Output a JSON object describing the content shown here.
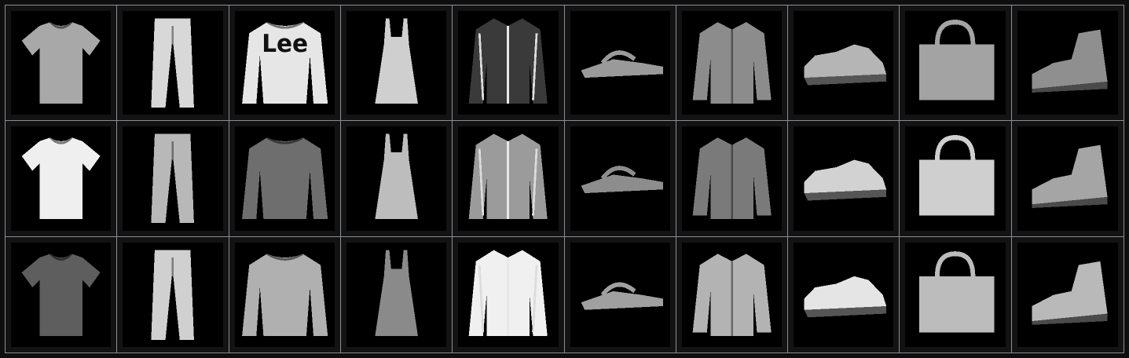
{
  "grid": {
    "rows": 3,
    "cols": 10,
    "items": [
      {
        "icon": "tshirt-icon",
        "shade": "#a8a8a8",
        "logo": ""
      },
      {
        "icon": "trouser-icon",
        "shade": "#d8d8d8",
        "logo": ""
      },
      {
        "icon": "pullover-icon",
        "shade": "#e6e6e6",
        "logo": "Lee"
      },
      {
        "icon": "dress-icon",
        "shade": "#cfcfcf",
        "logo": ""
      },
      {
        "icon": "coat-icon",
        "shade": "#3a3a3a",
        "logo": ""
      },
      {
        "icon": "sandal-icon",
        "shade": "#9a9a9a",
        "logo": ""
      },
      {
        "icon": "shirt-icon",
        "shade": "#8c8c8c",
        "logo": ""
      },
      {
        "icon": "sneaker-icon",
        "shade": "#b5b5b5",
        "logo": ""
      },
      {
        "icon": "bag-icon",
        "shade": "#a3a3a3",
        "logo": ""
      },
      {
        "icon": "ankle-boot-icon",
        "shade": "#8f8f8f",
        "logo": ""
      },
      {
        "icon": "tshirt-icon",
        "shade": "#efefef",
        "logo": ""
      },
      {
        "icon": "trouser-icon",
        "shade": "#b8b8b8",
        "logo": ""
      },
      {
        "icon": "pullover-icon",
        "shade": "#6e6e6e",
        "logo": ""
      },
      {
        "icon": "dress-icon",
        "shade": "#bdbdbd",
        "logo": ""
      },
      {
        "icon": "coat-icon",
        "shade": "#9b9b9b",
        "logo": ""
      },
      {
        "icon": "sandal-icon",
        "shade": "#8d8d8d",
        "logo": ""
      },
      {
        "icon": "shirt-icon",
        "shade": "#7a7a7a",
        "logo": ""
      },
      {
        "icon": "sneaker-icon",
        "shade": "#d2d2d2",
        "logo": ""
      },
      {
        "icon": "bag-icon",
        "shade": "#cfcfcf",
        "logo": ""
      },
      {
        "icon": "ankle-boot-icon",
        "shade": "#a5a5a5",
        "logo": ""
      },
      {
        "icon": "tshirt-icon",
        "shade": "#5e5e5e",
        "logo": ""
      },
      {
        "icon": "trouser-icon",
        "shade": "#d0d0d0",
        "logo": ""
      },
      {
        "icon": "pullover-icon",
        "shade": "#b0b0b0",
        "logo": ""
      },
      {
        "icon": "dress-icon",
        "shade": "#8a8a8a",
        "logo": ""
      },
      {
        "icon": "coat-icon",
        "shade": "#f0f0f0",
        "logo": ""
      },
      {
        "icon": "sandal-icon",
        "shade": "#a0a0a0",
        "logo": ""
      },
      {
        "icon": "shirt-icon",
        "shade": "#b3b3b3",
        "logo": ""
      },
      {
        "icon": "sneaker-icon",
        "shade": "#e5e5e5",
        "logo": ""
      },
      {
        "icon": "bag-icon",
        "shade": "#bcbcbc",
        "logo": ""
      },
      {
        "icon": "ankle-boot-icon",
        "shade": "#b9b9b9",
        "logo": ""
      }
    ]
  },
  "colors": {
    "background": "#0e0e0e",
    "grid_line": "#8a8f96",
    "image_background": "#000000"
  }
}
